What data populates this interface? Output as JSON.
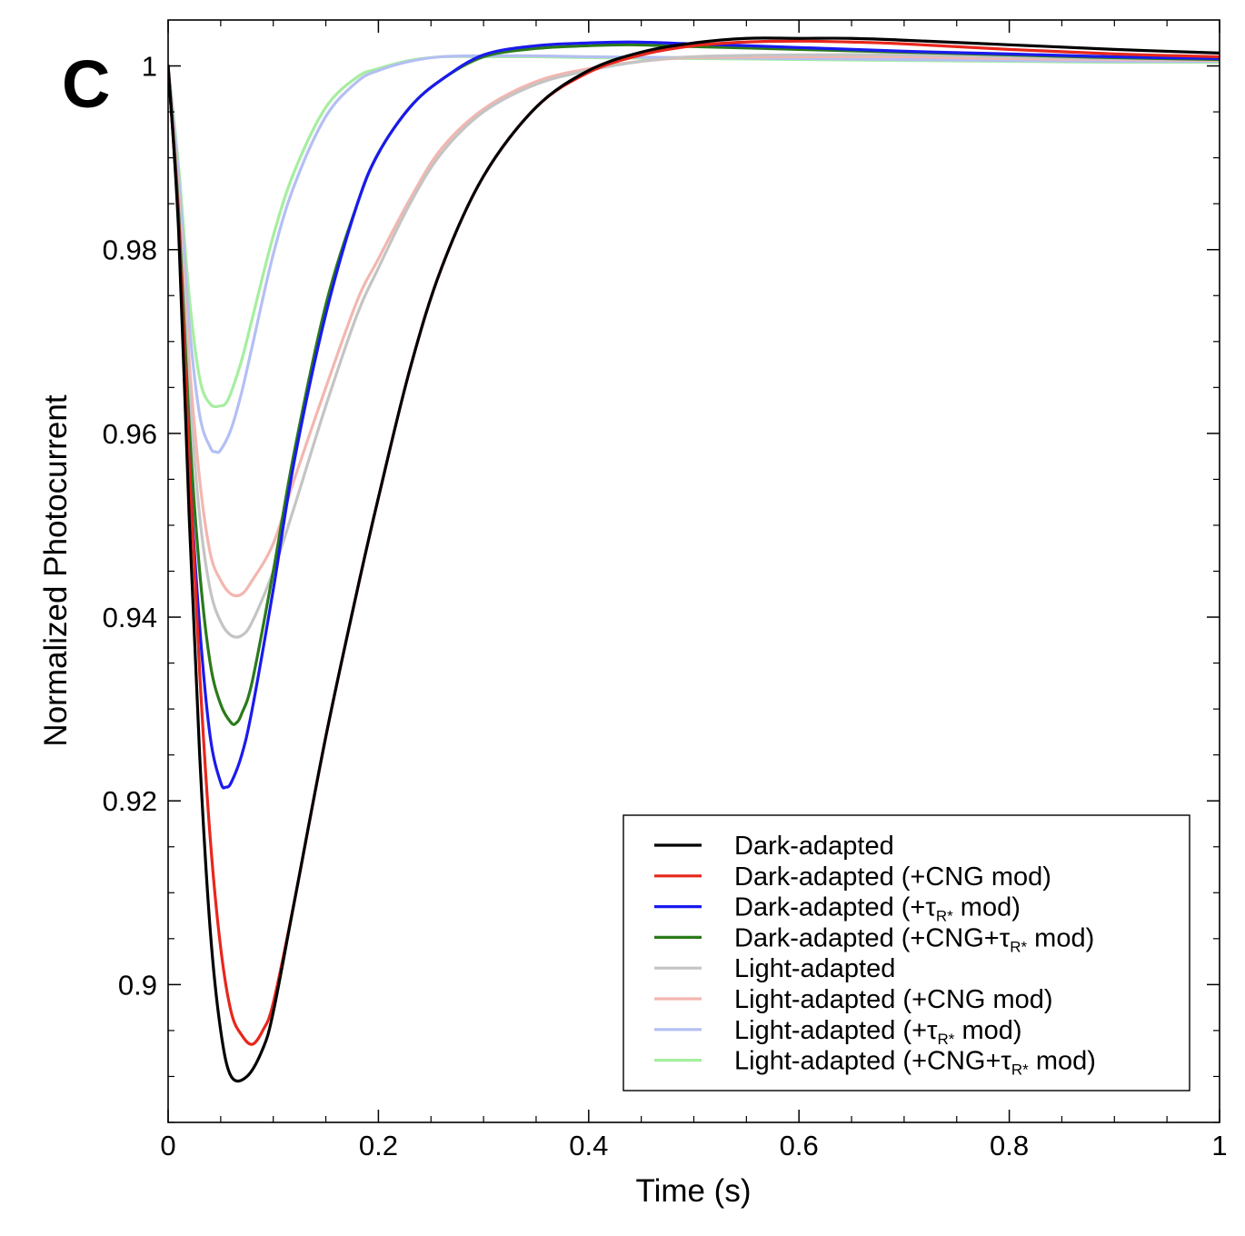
{
  "chart_data": {
    "type": "line",
    "panel_label": "C",
    "title": "",
    "xlabel": "Time (s)",
    "ylabel": "Normalized Photocurrent",
    "xlim": [
      0,
      1
    ],
    "ylim": [
      0.885,
      1.005
    ],
    "x_ticks": [
      0,
      0.2,
      0.4,
      0.6,
      0.8,
      1
    ],
    "x_tick_labels": [
      "0",
      "0.2",
      "0.4",
      "0.6",
      "0.8",
      "1"
    ],
    "y_ticks": [
      0.9,
      0.92,
      0.94,
      0.96,
      0.98,
      1
    ],
    "y_tick_labels": [
      "0.9",
      "0.92",
      "0.94",
      "0.96",
      "0.98",
      "1"
    ],
    "grid": false,
    "legend_position": "bottom-right",
    "series": [
      {
        "name": "Dark-adapted",
        "label_main": "Dark-adapted",
        "label_sub": "",
        "label_tail": "",
        "color": "#000000",
        "x": [
          0,
          0.01,
          0.02,
          0.03,
          0.04,
          0.05,
          0.06,
          0.075,
          0.09,
          0.1,
          0.12,
          0.15,
          0.18,
          0.2,
          0.23,
          0.26,
          0.3,
          0.35,
          0.4,
          0.45,
          0.5,
          0.55,
          0.6,
          0.65,
          0.7,
          0.8,
          0.9,
          1.0
        ],
        "y": [
          1.0,
          0.982,
          0.951,
          0.925,
          0.906,
          0.895,
          0.89,
          0.89,
          0.893,
          0.897,
          0.909,
          0.927,
          0.943,
          0.953,
          0.967,
          0.978,
          0.988,
          0.9955,
          0.9995,
          1.0015,
          1.0025,
          1.003,
          1.003,
          1.003,
          1.0028,
          1.0023,
          1.0018,
          1.0014
        ]
      },
      {
        "name": "Dark-adapted (+CNG mod)",
        "label_main": "Dark-adapted (+CNG mod)",
        "label_sub": "",
        "label_tail": "",
        "color": "#e8261c",
        "x": [
          0,
          0.01,
          0.02,
          0.03,
          0.04,
          0.05,
          0.06,
          0.07,
          0.08,
          0.09,
          0.1,
          0.12,
          0.15,
          0.18,
          0.2,
          0.23,
          0.26,
          0.3,
          0.35,
          0.4,
          0.45,
          0.5,
          0.55,
          0.6,
          0.65,
          0.7,
          0.8,
          0.9,
          1.0
        ],
        "y": [
          1.0,
          0.983,
          0.957,
          0.934,
          0.916,
          0.904,
          0.897,
          0.8945,
          0.8935,
          0.895,
          0.898,
          0.909,
          0.927,
          0.943,
          0.953,
          0.967,
          0.978,
          0.988,
          0.9955,
          0.9993,
          1.0012,
          1.0022,
          1.0026,
          1.0027,
          1.0026,
          1.0024,
          1.0018,
          1.0013,
          1.001
        ]
      },
      {
        "name": "Dark-adapted (+τR* mod)",
        "label_main": "Dark-adapted (+τ",
        "label_sub": "R*",
        "label_tail": " mod)",
        "color": "#1a1aee",
        "x": [
          0,
          0.01,
          0.02,
          0.03,
          0.04,
          0.05,
          0.055,
          0.06,
          0.07,
          0.08,
          0.1,
          0.12,
          0.15,
          0.18,
          0.2,
          0.23,
          0.26,
          0.3,
          0.35,
          0.4,
          0.44,
          0.5,
          0.6,
          0.7,
          0.8,
          0.9,
          1.0
        ],
        "y": [
          1.0,
          0.983,
          0.957,
          0.939,
          0.927,
          0.922,
          0.9215,
          0.922,
          0.925,
          0.93,
          0.943,
          0.957,
          0.973,
          0.985,
          0.9905,
          0.9955,
          0.9985,
          1.0012,
          1.0022,
          1.0025,
          1.0026,
          1.0024,
          1.002,
          1.0016,
          1.0013,
          1.001,
          1.0008
        ]
      },
      {
        "name": "Dark-adapted (+CNG+τR* mod)",
        "label_main": "Dark-adapted (+CNG+τ",
        "label_sub": "R*",
        "label_tail": " mod)",
        "color": "#2a7a1a",
        "x": [
          0,
          0.01,
          0.02,
          0.03,
          0.04,
          0.05,
          0.06,
          0.065,
          0.07,
          0.08,
          0.1,
          0.12,
          0.15,
          0.18,
          0.2,
          0.23,
          0.26,
          0.3,
          0.35,
          0.4,
          0.44,
          0.5,
          0.6,
          0.7,
          0.8,
          0.9,
          1.0
        ],
        "y": [
          1.0,
          0.984,
          0.961,
          0.945,
          0.935,
          0.9305,
          0.9285,
          0.9285,
          0.9295,
          0.933,
          0.945,
          0.958,
          0.974,
          0.985,
          0.9905,
          0.9955,
          0.9985,
          1.001,
          1.0019,
          1.0022,
          1.0023,
          1.0021,
          1.0018,
          1.0015,
          1.0012,
          1.0009,
          1.0007
        ]
      },
      {
        "name": "Light-adapted",
        "label_main": "Light-adapted",
        "label_sub": "",
        "label_tail": "",
        "color": "#c4c4c4",
        "x": [
          0,
          0.01,
          0.02,
          0.03,
          0.04,
          0.05,
          0.06,
          0.07,
          0.08,
          0.1,
          0.12,
          0.15,
          0.18,
          0.2,
          0.23,
          0.26,
          0.3,
          0.35,
          0.4,
          0.45,
          0.5,
          0.6,
          0.7,
          0.8,
          0.9,
          1.0
        ],
        "y": [
          1.0,
          0.985,
          0.965,
          0.951,
          0.943,
          0.9395,
          0.938,
          0.938,
          0.9395,
          0.945,
          0.952,
          0.963,
          0.973,
          0.978,
          0.985,
          0.9905,
          0.995,
          0.998,
          0.9995,
          1.0005,
          1.001,
          1.0012,
          1.0012,
          1.001,
          1.0008,
          1.0007
        ]
      },
      {
        "name": "Light-adapted (+CNG mod)",
        "label_main": "Light-adapted (+CNG mod)",
        "label_sub": "",
        "label_tail": "",
        "color": "#f3b6b0",
        "x": [
          0,
          0.01,
          0.02,
          0.03,
          0.04,
          0.05,
          0.06,
          0.07,
          0.08,
          0.1,
          0.12,
          0.15,
          0.18,
          0.2,
          0.23,
          0.26,
          0.3,
          0.35,
          0.4,
          0.45,
          0.5,
          0.6,
          0.7,
          0.8,
          0.9,
          1.0
        ],
        "y": [
          1.0,
          0.986,
          0.968,
          0.955,
          0.947,
          0.944,
          0.9425,
          0.9425,
          0.944,
          0.948,
          0.955,
          0.965,
          0.9745,
          0.979,
          0.9855,
          0.991,
          0.9953,
          0.9983,
          0.9997,
          1.0005,
          1.0009,
          1.001,
          1.001,
          1.0008,
          1.0007,
          1.0006
        ]
      },
      {
        "name": "Light-adapted (+τR* mod)",
        "label_main": "Light-adapted (+τ",
        "label_sub": "R*",
        "label_tail": " mod)",
        "color": "#b4bff3",
        "x": [
          0,
          0.01,
          0.02,
          0.03,
          0.04,
          0.045,
          0.05,
          0.06,
          0.07,
          0.08,
          0.1,
          0.12,
          0.15,
          0.18,
          0.2,
          0.23,
          0.26,
          0.3,
          0.35,
          0.4,
          0.5,
          0.6,
          0.7,
          0.8,
          0.9,
          1.0
        ],
        "y": [
          1.0,
          0.988,
          0.972,
          0.962,
          0.9585,
          0.958,
          0.9582,
          0.9605,
          0.9645,
          0.9695,
          0.9795,
          0.987,
          0.9945,
          0.9983,
          0.9995,
          1.0005,
          1.001,
          1.0011,
          1.0011,
          1.001,
          1.0009,
          1.0008,
          1.0007,
          1.0006,
          1.0005,
          1.0005
        ]
      },
      {
        "name": "Light-adapted (+CNG+τR* mod)",
        "label_main": "Light-adapted (+CNG+τ",
        "label_sub": "R*",
        "label_tail": " mod)",
        "color": "#a6eea0",
        "x": [
          0,
          0.01,
          0.02,
          0.03,
          0.04,
          0.05,
          0.055,
          0.06,
          0.07,
          0.08,
          0.1,
          0.12,
          0.15,
          0.18,
          0.2,
          0.23,
          0.26,
          0.3,
          0.35,
          0.4,
          0.5,
          0.6,
          0.7,
          0.8,
          0.9,
          1.0
        ],
        "y": [
          1.0,
          0.989,
          0.975,
          0.966,
          0.9632,
          0.963,
          0.9633,
          0.9645,
          0.968,
          0.9725,
          0.9815,
          0.9885,
          0.9955,
          0.9988,
          0.9997,
          1.0006,
          1.001,
          1.001,
          1.001,
          1.0009,
          1.0008,
          1.0007,
          1.0006,
          1.0005,
          1.0004,
          1.0004
        ]
      }
    ]
  }
}
